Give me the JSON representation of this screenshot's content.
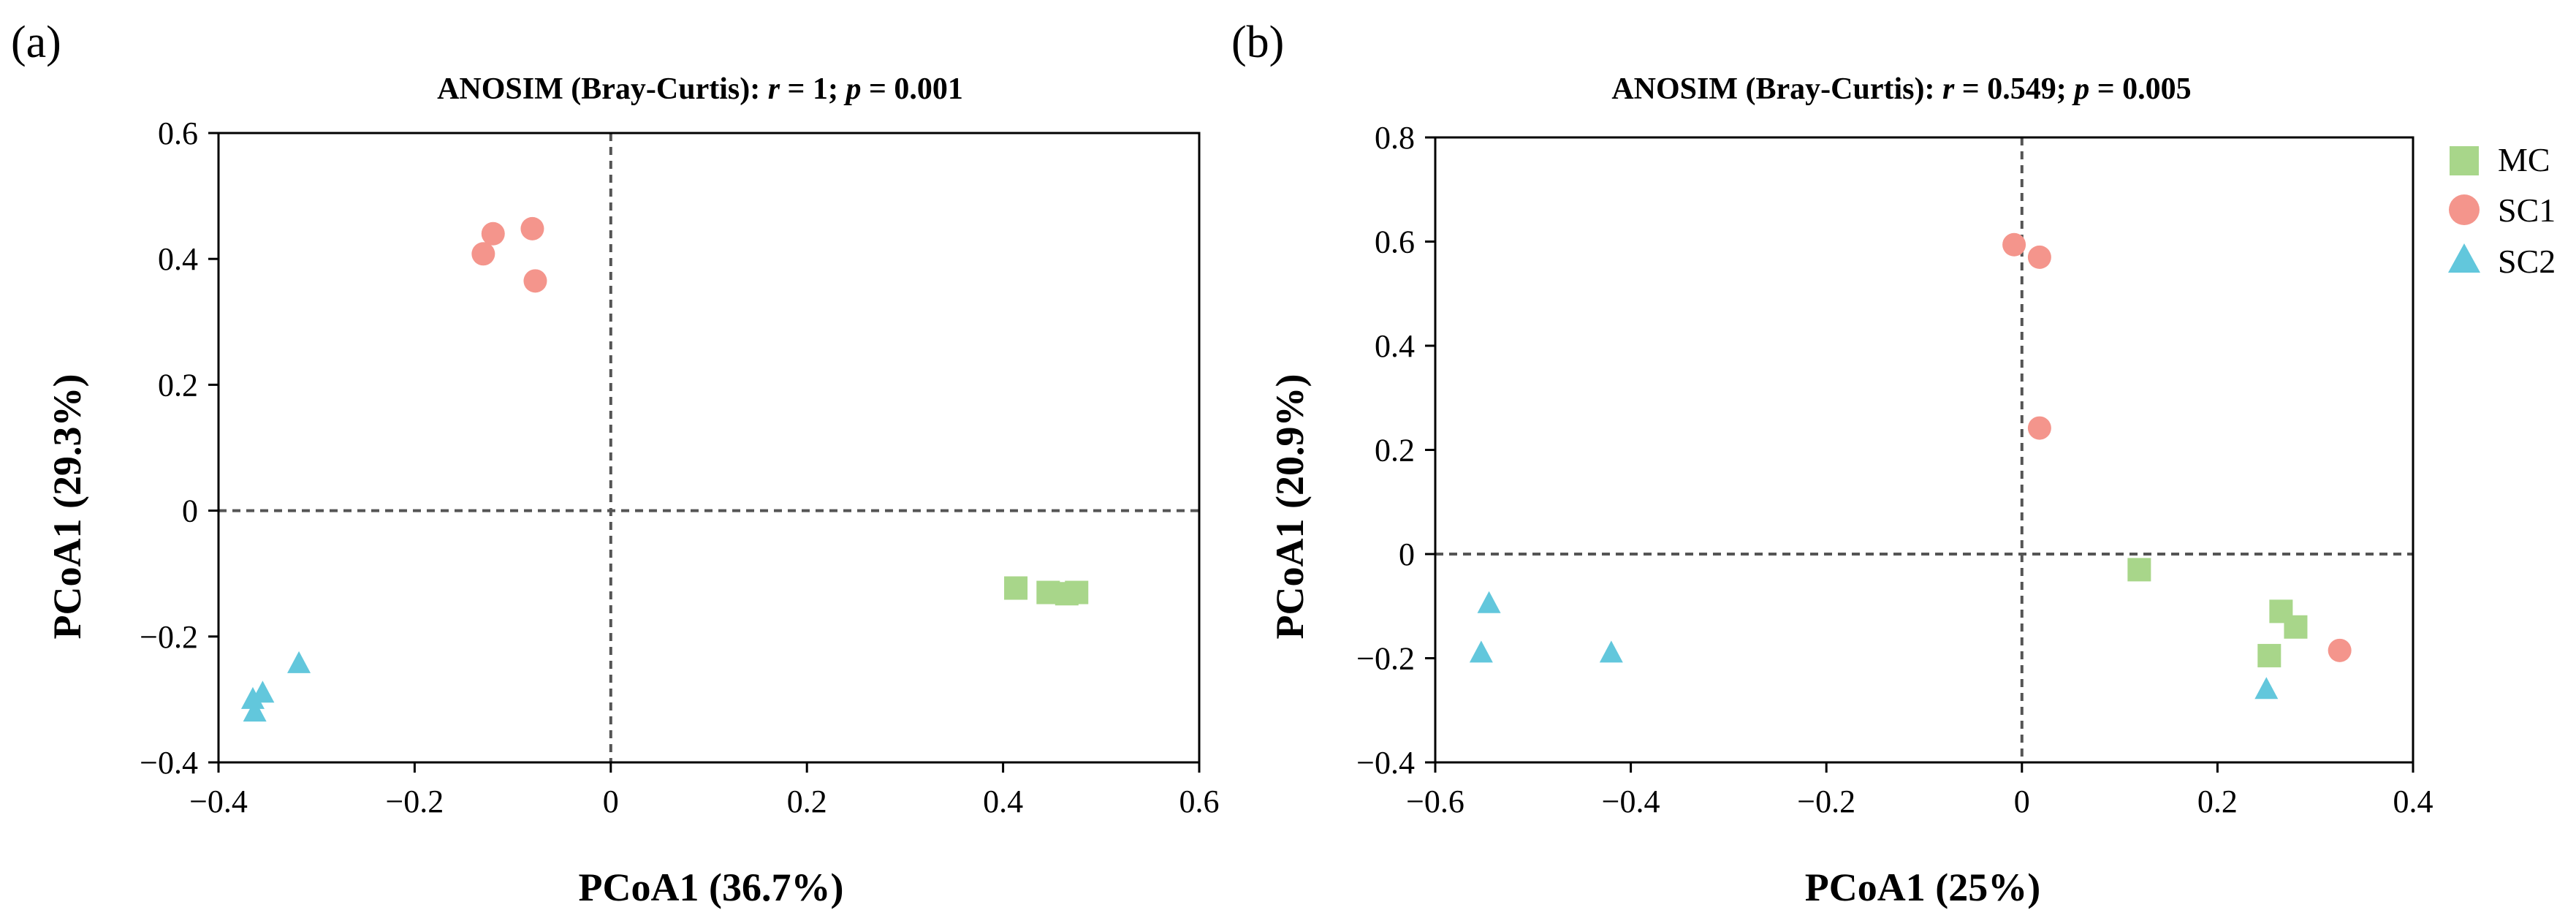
{
  "chart_data": [
    {
      "type": "scatter",
      "panel_label": "(a)",
      "title_parts": [
        "ANOSIM (Bray-Curtis): ",
        "r",
        " = 1; ",
        "p",
        " = 0.001"
      ],
      "xlabel": "PCoA1 (36.7%)",
      "ylabel": "PCoA1 (29.3%)",
      "xlim": [
        -0.4,
        0.6
      ],
      "ylim": [
        -0.4,
        0.6
      ],
      "xticks": [
        -0.4,
        -0.2,
        0,
        0.2,
        0.4,
        0.6
      ],
      "xtick_labels": [
        "−0.4",
        "−0.2",
        "0",
        "0.2",
        "0.4",
        "0.6"
      ],
      "yticks": [
        -0.4,
        -0.2,
        0,
        0.2,
        0.4,
        0.6
      ],
      "ytick_labels": [
        "−0.4",
        "−0.2",
        "0",
        "0.2",
        "0.4",
        "0.6"
      ],
      "series": [
        {
          "name": "MC",
          "points": [
            [
              0.413,
              -0.123
            ],
            [
              0.446,
              -0.13
            ],
            [
              0.465,
              -0.132
            ],
            [
              0.475,
              -0.13
            ]
          ]
        },
        {
          "name": "SC1",
          "points": [
            [
              -0.12,
              0.44
            ],
            [
              -0.13,
              0.408
            ],
            [
              -0.08,
              0.448
            ],
            [
              -0.077,
              0.365
            ]
          ]
        },
        {
          "name": "SC2",
          "points": [
            [
              -0.318,
              -0.243
            ],
            [
              -0.355,
              -0.29
            ],
            [
              -0.365,
              -0.3
            ],
            [
              -0.363,
              -0.32
            ]
          ]
        }
      ]
    },
    {
      "type": "scatter",
      "panel_label": "(b)",
      "title_parts": [
        "ANOSIM (Bray-Curtis): ",
        "r",
        " = 0.549; ",
        "p",
        " = 0.005"
      ],
      "xlabel": "PCoA1 (25%)",
      "ylabel": "PCoA1 (20.9%)",
      "xlim": [
        -0.6,
        0.4
      ],
      "ylim": [
        -0.4,
        0.8
      ],
      "xticks": [
        -0.6,
        -0.4,
        -0.2,
        0,
        0.2,
        0.4
      ],
      "xtick_labels": [
        "−0.6",
        "−0.4",
        "−0.2",
        "0",
        "0.2",
        "0.4"
      ],
      "yticks": [
        -0.4,
        -0.2,
        0,
        0.2,
        0.4,
        0.6,
        0.8
      ],
      "ytick_labels": [
        "−0.4",
        "−0.2",
        "0",
        "0.2",
        "0.4",
        "0.6",
        "0.8"
      ],
      "series": [
        {
          "name": "MC",
          "points": [
            [
              0.12,
              -0.03
            ],
            [
              0.265,
              -0.11
            ],
            [
              0.28,
              -0.14
            ],
            [
              0.253,
              -0.195
            ]
          ]
        },
        {
          "name": "SC1",
          "points": [
            [
              -0.008,
              0.594
            ],
            [
              0.018,
              0.57
            ],
            [
              0.018,
              0.242
            ],
            [
              0.325,
              -0.185
            ]
          ]
        },
        {
          "name": "SC2",
          "points": [
            [
              -0.545,
              -0.095
            ],
            [
              -0.553,
              -0.19
            ],
            [
              -0.42,
              -0.19
            ],
            [
              0.25,
              -0.26
            ]
          ]
        }
      ]
    }
  ],
  "legend": {
    "position": "right of panel (b), top",
    "items": [
      {
        "name": "MC",
        "marker": "square",
        "color": "#a8d68a"
      },
      {
        "name": "SC1",
        "marker": "circle",
        "color": "#f4958c"
      },
      {
        "name": "SC2",
        "marker": "triangle",
        "color": "#62c7dc"
      }
    ]
  },
  "colors": {
    "MC": "#a8d68a",
    "SC1": "#f4958c",
    "SC2": "#62c7dc",
    "axis": "#000000",
    "reference_line": "#555555"
  }
}
